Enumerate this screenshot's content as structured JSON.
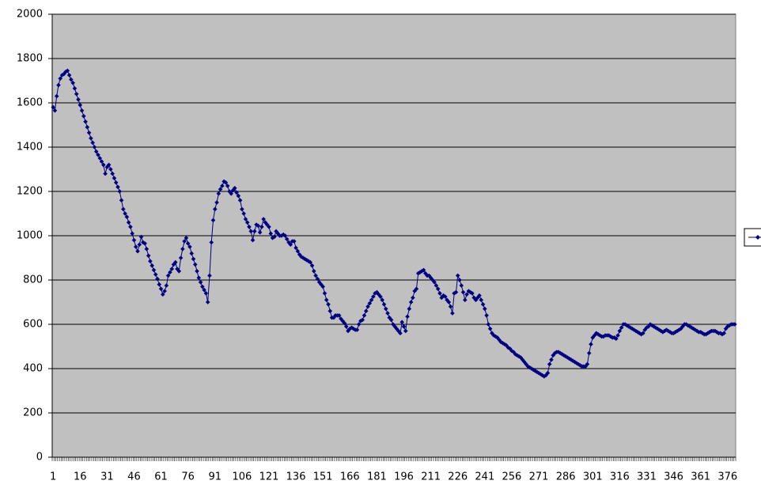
{
  "chart_data": {
    "type": "line",
    "categories": [
      "1",
      null,
      null,
      null,
      null,
      null,
      null,
      null,
      null,
      null,
      null,
      null,
      null,
      null,
      null,
      "16",
      null,
      null,
      null,
      null,
      null,
      null,
      null,
      null,
      null,
      null,
      null,
      null,
      null,
      null,
      "31",
      null,
      null,
      null,
      null,
      null,
      null,
      null,
      null,
      null,
      null,
      null,
      null,
      null,
      null,
      "46",
      null,
      null,
      null,
      null,
      null,
      null,
      null,
      null,
      null,
      null,
      null,
      null,
      null,
      null,
      "61",
      null,
      null,
      null,
      null,
      null,
      null,
      null,
      null,
      null,
      null,
      null,
      null,
      null,
      null,
      "76",
      null,
      null,
      null,
      null,
      null,
      null,
      null,
      null,
      null,
      null,
      null,
      null,
      null,
      null,
      "91",
      null,
      null,
      null,
      null,
      null,
      null,
      null,
      null,
      null,
      null,
      null,
      null,
      null,
      null,
      "106",
      null,
      null,
      null,
      null,
      null,
      null,
      null,
      null,
      null,
      null,
      null,
      null,
      null,
      null,
      "121",
      null,
      null,
      null,
      null,
      null,
      null,
      null,
      null,
      null,
      null,
      null,
      null,
      null,
      null,
      "136",
      null,
      null,
      null,
      null,
      null,
      null,
      null,
      null,
      null,
      null,
      null,
      null,
      null,
      null,
      "151",
      null,
      null,
      null,
      null,
      null,
      null,
      null,
      null,
      null,
      null,
      null,
      null,
      null,
      null,
      "166",
      null,
      null,
      null,
      null,
      null,
      null,
      null,
      null,
      null,
      null,
      null,
      null,
      null,
      null,
      "181",
      null,
      null,
      null,
      null,
      null,
      null,
      null,
      null,
      null,
      null,
      null,
      null,
      null,
      null,
      "196",
      null,
      null,
      null,
      null,
      null,
      null,
      null,
      null,
      null,
      null,
      null,
      null,
      null,
      null,
      "211",
      null,
      null,
      null,
      null,
      null,
      null,
      null,
      null,
      null,
      null,
      null,
      null,
      null,
      null,
      "226",
      null,
      null,
      null,
      null,
      null,
      null,
      null,
      null,
      null,
      null,
      null,
      null,
      null,
      null,
      "241",
      null,
      null,
      null,
      null,
      null,
      null,
      null,
      null,
      null,
      null,
      null,
      null,
      null,
      null,
      "256",
      null,
      null,
      null,
      null,
      null,
      null,
      null,
      null,
      null,
      null,
      null,
      null,
      null,
      null,
      "271",
      null,
      null,
      null,
      null,
      null,
      null,
      null,
      null,
      null,
      null,
      null,
      null,
      null,
      null,
      "286",
      null,
      null,
      null,
      null,
      null,
      null,
      null,
      null,
      null,
      null,
      null,
      null,
      null,
      null,
      "301",
      null,
      null,
      null,
      null,
      null,
      null,
      null,
      null,
      null,
      null,
      null,
      null,
      null,
      null,
      "316",
      null,
      null,
      null,
      null,
      null,
      null,
      null,
      null,
      null,
      null,
      null,
      null,
      null,
      null,
      "331",
      null,
      null,
      null,
      null,
      null,
      null,
      null,
      null,
      null,
      null,
      null,
      null,
      null,
      null,
      "346",
      null,
      null,
      null,
      null,
      null,
      null,
      null,
      null,
      null,
      null,
      null,
      null,
      null,
      null,
      "361",
      null,
      null,
      null,
      null,
      null,
      null,
      null,
      null,
      null,
      null,
      null,
      null,
      null,
      null,
      "376",
      null,
      null,
      null,
      null
    ],
    "series": [
      {
        "color": "#000080",
        "values": [
          1580,
          1565,
          1630,
          1680,
          1710,
          1725,
          1730,
          1740,
          1745,
          1725,
          1705,
          1690,
          1665,
          1640,
          1615,
          1590,
          1565,
          1540,
          1515,
          1490,
          1465,
          1440,
          1420,
          1400,
          1380,
          1365,
          1350,
          1335,
          1320,
          1280,
          1310,
          1320,
          1300,
          1280,
          1260,
          1240,
          1220,
          1200,
          1160,
          1120,
          1100,
          1085,
          1060,
          1040,
          1010,
          980,
          950,
          930,
          960,
          995,
          970,
          965,
          940,
          910,
          885,
          865,
          845,
          825,
          805,
          780,
          760,
          735,
          750,
          775,
          820,
          835,
          850,
          870,
          880,
          850,
          840,
          900,
          940,
          975,
          990,
          965,
          950,
          920,
          895,
          870,
          840,
          810,
          790,
          770,
          755,
          740,
          700,
          820,
          970,
          1070,
          1120,
          1150,
          1190,
          1210,
          1225,
          1245,
          1240,
          1225,
          1200,
          1190,
          1205,
          1215,
          1195,
          1180,
          1160,
          1120,
          1100,
          1075,
          1060,
          1040,
          1020,
          980,
          1020,
          1050,
          1045,
          1015,
          1040,
          1075,
          1060,
          1050,
          1040,
          1010,
          990,
          995,
          1020,
          1010,
          1000,
          1000,
          1005,
          1000,
          985,
          970,
          960,
          975,
          975,
          945,
          930,
          915,
          905,
          900,
          895,
          890,
          885,
          880,
          865,
          840,
          820,
          805,
          790,
          780,
          770,
          740,
          710,
          690,
          660,
          630,
          630,
          640,
          640,
          640,
          625,
          615,
          605,
          590,
          570,
          580,
          585,
          580,
          575,
          575,
          600,
          615,
          620,
          640,
          660,
          680,
          695,
          710,
          725,
          740,
          745,
          735,
          725,
          710,
          690,
          670,
          650,
          630,
          620,
          600,
          590,
          580,
          570,
          560,
          610,
          590,
          570,
          635,
          670,
          700,
          720,
          750,
          760,
          830,
          835,
          840,
          845,
          830,
          820,
          820,
          810,
          800,
          790,
          775,
          760,
          740,
          720,
          730,
          725,
          710,
          700,
          680,
          650,
          740,
          745,
          820,
          800,
          775,
          745,
          710,
          735,
          750,
          745,
          740,
          720,
          710,
          720,
          730,
          710,
          690,
          670,
          640,
          600,
          580,
          560,
          550,
          545,
          540,
          530,
          520,
          515,
          510,
          505,
          495,
          490,
          480,
          475,
          465,
          460,
          455,
          450,
          440,
          430,
          420,
          410,
          405,
          400,
          395,
          390,
          385,
          380,
          375,
          370,
          365,
          370,
          380,
          420,
          440,
          460,
          470,
          475,
          475,
          470,
          465,
          460,
          455,
          450,
          445,
          440,
          435,
          430,
          425,
          420,
          415,
          410,
          410,
          410,
          420,
          470,
          510,
          540,
          550,
          560,
          555,
          550,
          545,
          545,
          550,
          550,
          550,
          545,
          540,
          540,
          535,
          550,
          570,
          585,
          600,
          600,
          595,
          590,
          585,
          580,
          575,
          570,
          565,
          560,
          555,
          560,
          575,
          585,
          590,
          600,
          595,
          590,
          585,
          580,
          575,
          570,
          565,
          570,
          575,
          570,
          565,
          560,
          560,
          565,
          570,
          575,
          580,
          590,
          600,
          600,
          595,
          590,
          585,
          580,
          575,
          570,
          565,
          565,
          560,
          555,
          555,
          560,
          565,
          570,
          570,
          570,
          565,
          560,
          560,
          555,
          560,
          580,
          590,
          595,
          600,
          600,
          600
        ]
      }
    ],
    "ylim": [
      0,
      2000
    ],
    "yticks": [
      0,
      200,
      400,
      600,
      800,
      1000,
      1200,
      1400,
      1600,
      1800,
      2000
    ],
    "grid": true,
    "legend": "right"
  }
}
